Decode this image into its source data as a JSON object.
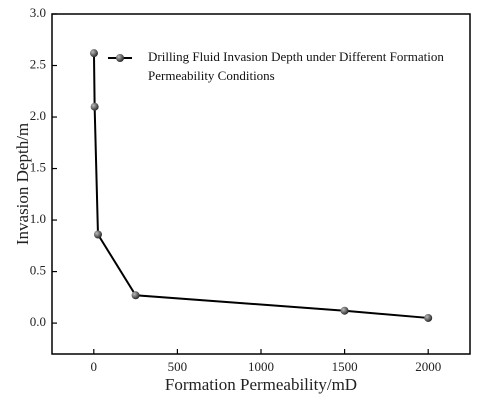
{
  "chart_data": {
    "type": "line",
    "x_label": "Formation Permeability/mD",
    "y_label": "Invasion Depth/m",
    "x": [
      1,
      5,
      25,
      250,
      1500,
      2000
    ],
    "series": [
      {
        "name": "Drilling Fluid Invasion Depth under Different Formation Permeability Conditions",
        "color": "#000000",
        "values": [
          2.62,
          2.1,
          0.86,
          0.27,
          0.12,
          0.05
        ]
      }
    ],
    "xlim": [
      -250,
      2250
    ],
    "xticks": [
      0,
      500,
      1000,
      1500,
      2000
    ],
    "ylim": [
      -0.3,
      3.0
    ],
    "yticks": [
      {
        "value": 0,
        "label": "0.0"
      },
      0.5,
      {
        "value": 1,
        "label": "1.0"
      },
      1.5,
      {
        "value": 2,
        "label": "2.0"
      },
      2.5,
      {
        "value": 3,
        "label": "3.0"
      }
    ],
    "legend": "upper right",
    "grid": false
  }
}
